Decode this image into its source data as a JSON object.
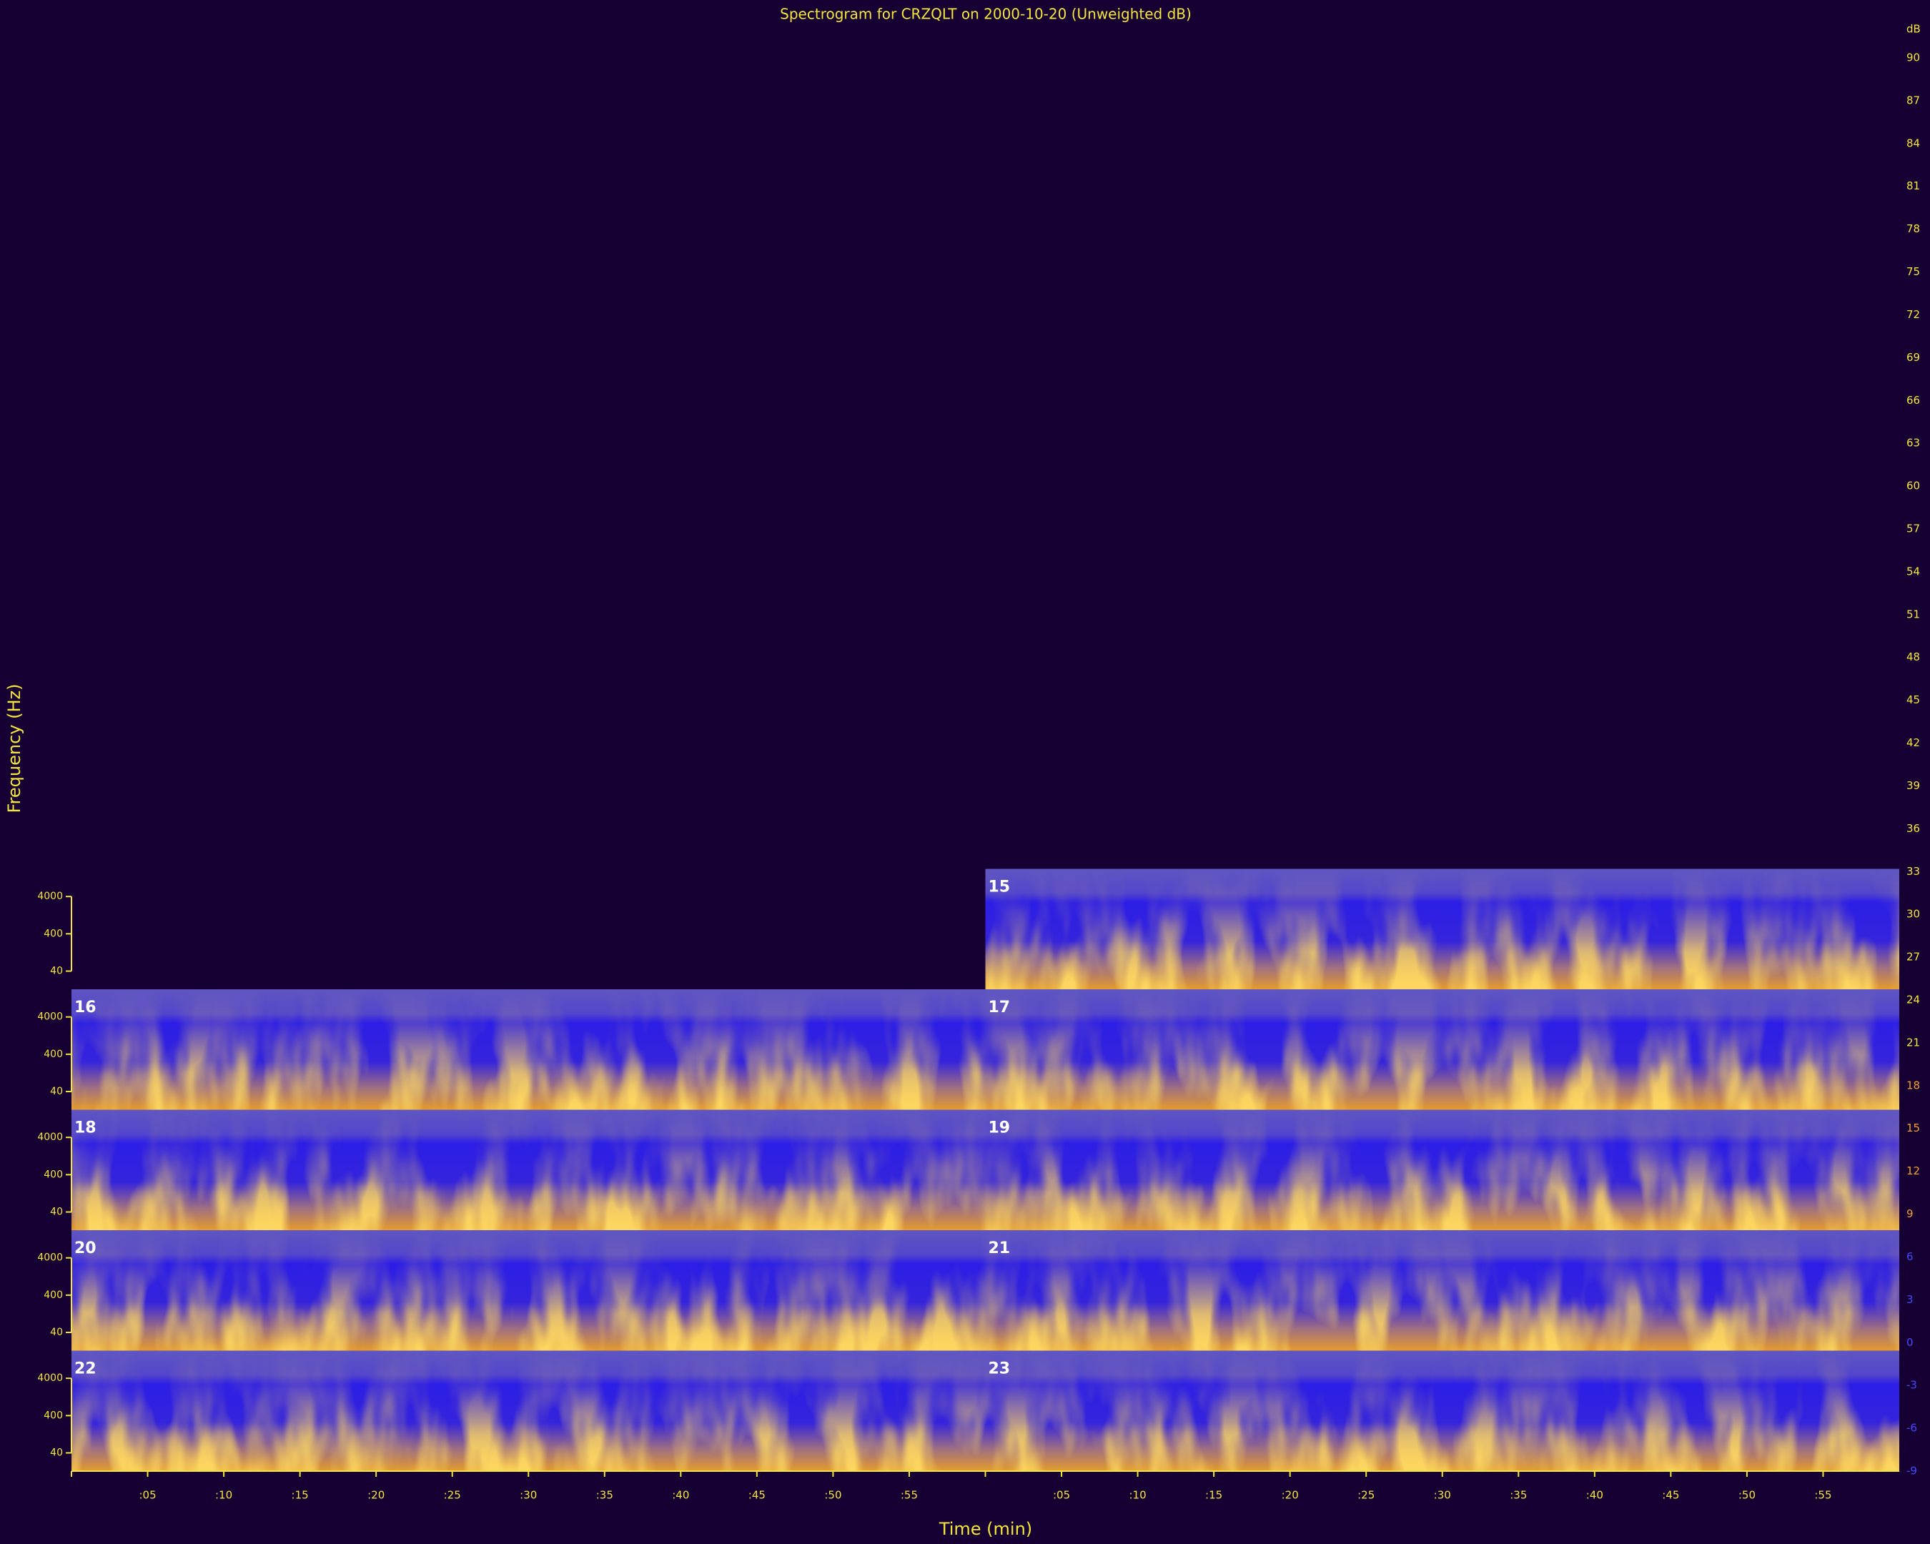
{
  "chart_data": {
    "type": "spectrogram",
    "title": "Spectrogram for CRZQLT on 2000-10-20 (Unweighted dB)",
    "x_label": "Time (min)",
    "y_label": "Frequency (Hz)",
    "hours": [
      15,
      16,
      17,
      18,
      19,
      20,
      21,
      22,
      23
    ],
    "xlim": [
      0,
      60
    ],
    "xticks": [
      {
        "value": 5,
        "label": ":05"
      },
      {
        "value": 10,
        "label": ":10"
      },
      {
        "value": 15,
        "label": ":15"
      },
      {
        "value": 20,
        "label": ":20"
      },
      {
        "value": 25,
        "label": ":25"
      },
      {
        "value": 30,
        "label": ":30"
      },
      {
        "value": 35,
        "label": ":35"
      },
      {
        "value": 40,
        "label": ":40"
      },
      {
        "value": 45,
        "label": ":45"
      },
      {
        "value": 50,
        "label": ":50"
      },
      {
        "value": 55,
        "label": ":55"
      }
    ],
    "log_y": true,
    "ylim": [
      13,
      22050
    ],
    "yticks": [
      4000,
      400,
      40
    ],
    "colorbar": {
      "label": "dB",
      "lim": [
        -9,
        90
      ],
      "ticks": [
        90,
        87,
        84,
        81,
        78,
        75,
        72,
        69,
        66,
        63,
        60,
        57,
        54,
        51,
        48,
        45,
        42,
        39,
        36,
        33,
        30,
        27,
        24,
        21,
        18,
        15,
        12,
        9,
        6,
        3,
        0,
        -3,
        -6,
        -9
      ]
    }
  }
}
